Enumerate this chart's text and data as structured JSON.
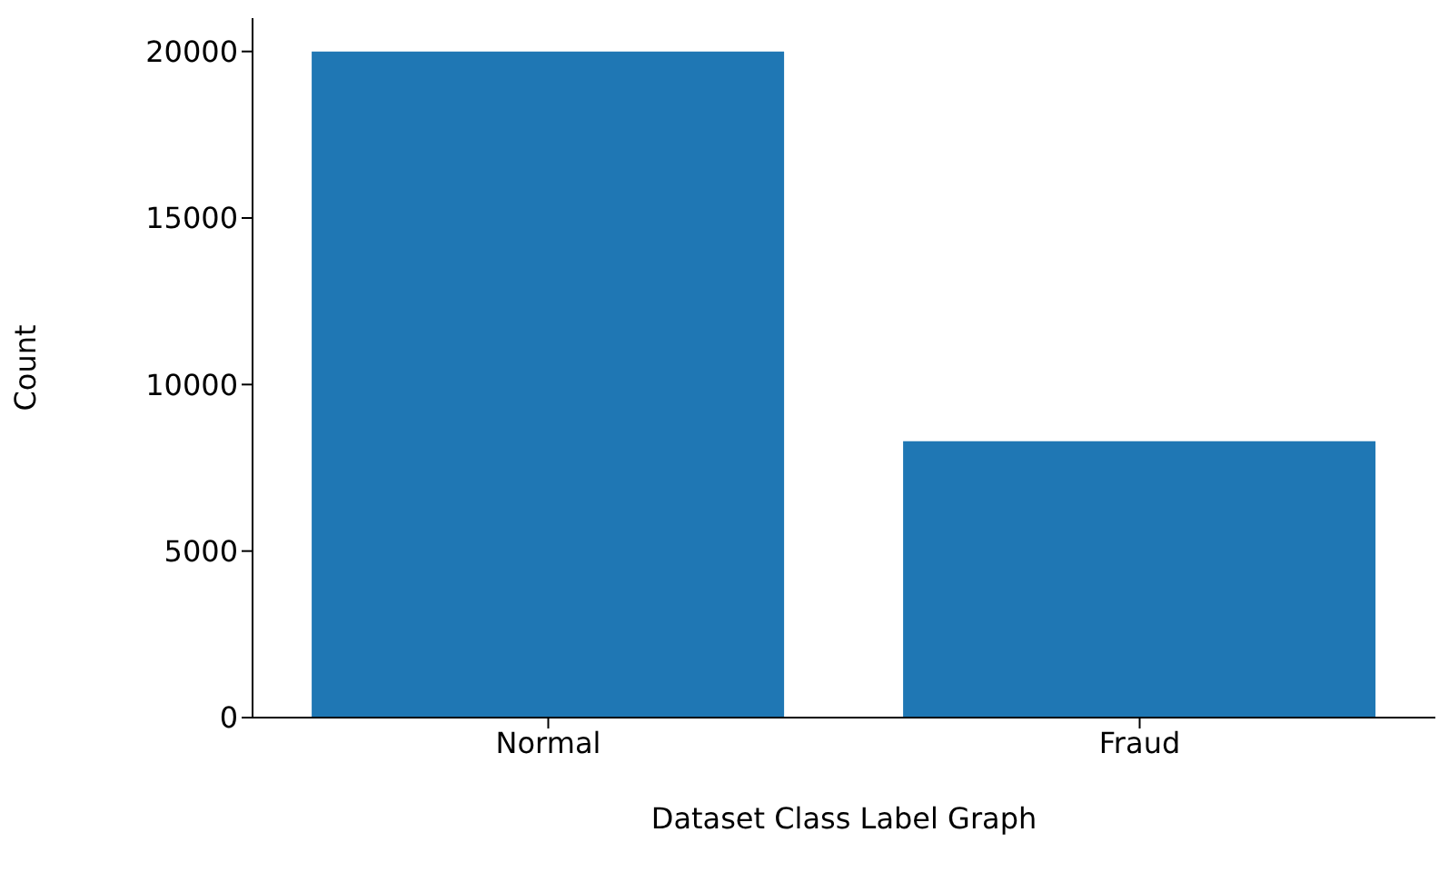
{
  "chart_data": {
    "type": "bar",
    "xlabel": "Dataset Class Label Graph",
    "ylabel": "Count",
    "categories": [
      "Normal",
      "Fraud"
    ],
    "values": [
      20000,
      8300
    ],
    "color": "#1f77b4",
    "ylim": [
      0,
      21000
    ],
    "yticks": [
      0,
      5000,
      10000,
      15000,
      20000
    ],
    "grid": false
  }
}
